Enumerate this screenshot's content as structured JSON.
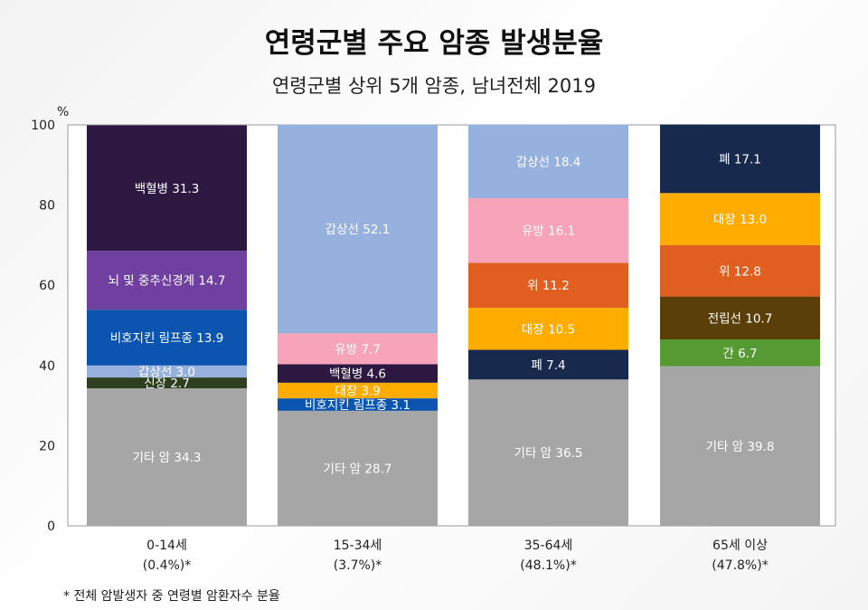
{
  "title": "연령군별 주요 암종 발생분율",
  "subtitle": "연령군별 상위 5개 암종, 남녀전체 2019",
  "footnote": "* 전체 암발생자 중 연령별 암환자수 분율",
  "chart_data": {
    "type": "bar",
    "stacked": true,
    "y_unit": "%",
    "ylim": [
      0,
      100
    ],
    "yticks": [
      0,
      20,
      40,
      60,
      80,
      100
    ],
    "categories": [
      {
        "label": "0-14세",
        "share": "(0.4%)*"
      },
      {
        "label": "15-34세",
        "share": "(3.7%)*"
      },
      {
        "label": "35-64세",
        "share": "(48.1%)*"
      },
      {
        "label": "65세 이상",
        "share": "(47.8%)*"
      }
    ],
    "stacks": [
      [
        {
          "name": "기타 암",
          "value": 34.3,
          "color": "#a6a6a6"
        },
        {
          "name": "신장",
          "value": 2.7,
          "color": "#2e3f1f"
        },
        {
          "name": "갑상선",
          "value": 3.0,
          "color": "#96b1de"
        },
        {
          "name": "비호지킨 림프종",
          "value": 13.9,
          "color": "#0b55b0"
        },
        {
          "name": "뇌 및 중추신경계",
          "value": 14.7,
          "color": "#7040a0"
        },
        {
          "name": "백혈병",
          "value": 31.3,
          "color": "#2c1840"
        }
      ],
      [
        {
          "name": "기타 암",
          "value": 28.7,
          "color": "#a6a6a6"
        },
        {
          "name": "비호지킨 림프종",
          "value": 3.1,
          "color": "#0b55b0"
        },
        {
          "name": "대장",
          "value": 3.9,
          "color": "#ffac00"
        },
        {
          "name": "백혈병",
          "value": 4.6,
          "color": "#2c1840"
        },
        {
          "name": "유방",
          "value": 7.7,
          "color": "#f7a3b9"
        },
        {
          "name": "갑상선",
          "value": 52.1,
          "color": "#96b1de"
        }
      ],
      [
        {
          "name": "기타 암",
          "value": 36.5,
          "color": "#a6a6a6"
        },
        {
          "name": "폐",
          "value": 7.4,
          "color": "#17294d"
        },
        {
          "name": "대장",
          "value": 10.5,
          "color": "#ffac00"
        },
        {
          "name": "위",
          "value": 11.2,
          "color": "#e05e20"
        },
        {
          "name": "유방",
          "value": 16.1,
          "color": "#f7a3b9"
        },
        {
          "name": "갑상선",
          "value": 18.4,
          "color": "#96b1de"
        }
      ],
      [
        {
          "name": "기타 암",
          "value": 39.8,
          "color": "#a6a6a6"
        },
        {
          "name": "간",
          "value": 6.7,
          "color": "#559a33"
        },
        {
          "name": "전립선",
          "value": 10.7,
          "color": "#5a3f08"
        },
        {
          "name": "위",
          "value": 12.8,
          "color": "#e05e20"
        },
        {
          "name": "대장",
          "value": 13.0,
          "color": "#ffac00"
        },
        {
          "name": "폐",
          "value": 17.1,
          "color": "#17294d"
        }
      ]
    ],
    "dark_text_segments": [
      "신장"
    ]
  }
}
